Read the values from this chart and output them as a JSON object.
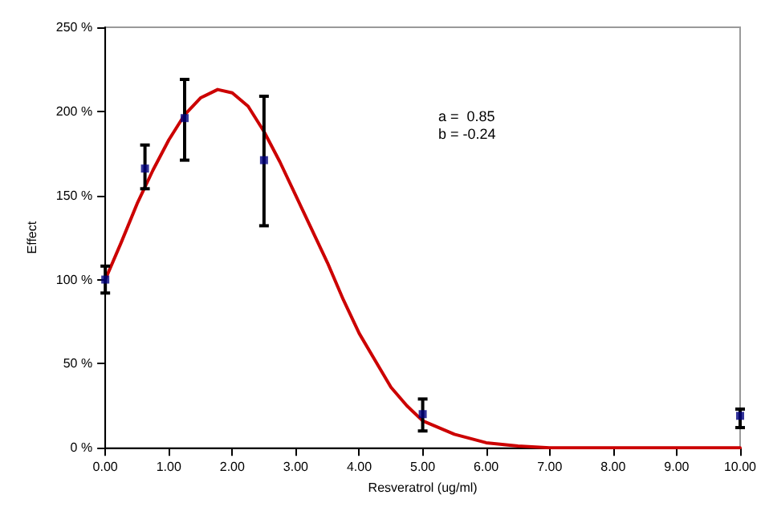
{
  "chart_data": {
    "type": "scatter",
    "xlabel": "Resveratrol (ug/ml)",
    "ylabel": "Effect",
    "annotations": [
      "a =  0.85",
      "b = -0.24"
    ],
    "xlim": [
      0,
      10
    ],
    "xticks": [
      {
        "value": 0,
        "label": "0.00"
      },
      {
        "value": 1,
        "label": "1.00"
      },
      {
        "value": 2,
        "label": "2.00"
      },
      {
        "value": 3,
        "label": "3.00"
      },
      {
        "value": 4,
        "label": "4.00"
      },
      {
        "value": 5,
        "label": "5.00"
      },
      {
        "value": 6,
        "label": "6.00"
      },
      {
        "value": 7,
        "label": "7.00"
      },
      {
        "value": 8,
        "label": "8.00"
      },
      {
        "value": 9,
        "label": "9.00"
      },
      {
        "value": 10,
        "label": "10.00"
      }
    ],
    "ylim": [
      0,
      250
    ],
    "yticks": [
      {
        "value": 0,
        "label": "0 %"
      },
      {
        "value": 50,
        "label": "50 %"
      },
      {
        "value": 100,
        "label": "100 %"
      },
      {
        "value": 150,
        "label": "150 %"
      },
      {
        "value": 200,
        "label": "200 %"
      },
      {
        "value": 250,
        "label": "250 %"
      }
    ],
    "grid": false,
    "series": [
      {
        "type": "line",
        "color": "#cc0000",
        "marker": "none",
        "line_style": "solid",
        "x": [
          0,
          0.25,
          0.5,
          0.75,
          1,
          1.25,
          1.5,
          1.77,
          2,
          2.25,
          2.5,
          2.75,
          3,
          3.25,
          3.5,
          3.75,
          4,
          4.25,
          4.5,
          4.75,
          5,
          5.5,
          6,
          6.5,
          7,
          8,
          9,
          10
        ],
        "values": [
          100,
          122,
          145,
          165,
          183,
          198,
          208,
          213,
          211,
          203,
          188,
          170,
          150,
          130,
          110,
          88,
          68,
          52,
          36,
          25,
          16,
          8,
          3,
          1,
          0,
          0,
          0,
          0
        ]
      },
      {
        "color": "#000080",
        "marker": "square",
        "x": [
          0,
          0.625,
          1.25,
          2.5,
          5,
          10
        ],
        "values": [
          100,
          166,
          196,
          171,
          20,
          19
        ],
        "errors": [
          [
            92,
            108
          ],
          [
            154,
            180
          ],
          [
            171,
            219
          ],
          [
            132,
            209
          ],
          [
            10,
            29
          ],
          [
            12,
            23
          ]
        ]
      }
    ]
  }
}
